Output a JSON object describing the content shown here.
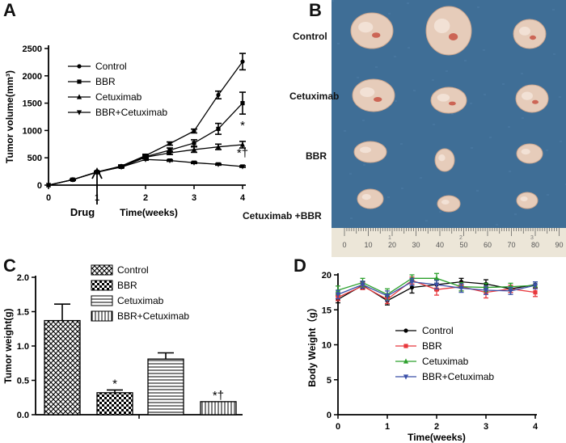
{
  "panels": {
    "a": {
      "letter": "A",
      "drug_label": "Drug",
      "chart_data": {
        "type": "line",
        "title": "",
        "xlabel": "Time(weeks)",
        "ylabel": "Tumor volume(mm³)",
        "xlim": [
          0,
          4
        ],
        "ylim": [
          0,
          2500
        ],
        "xticks": [
          "0",
          "1",
          "2",
          "3",
          "4"
        ],
        "yticks": [
          "0",
          "500",
          "1000",
          "1500",
          "2000",
          "2500"
        ],
        "x": [
          0,
          0.5,
          1,
          1.5,
          2,
          2.5,
          3,
          3.5,
          4
        ],
        "series": [
          {
            "name": "Control",
            "marker": "circle",
            "values": [
              0,
              100,
              240,
              350,
              540,
              760,
              990,
              1650,
              2260
            ],
            "errors": [
              0,
              10,
              15,
              20,
              25,
              30,
              35,
              70,
              150
            ]
          },
          {
            "name": "BBR",
            "marker": "square",
            "values": [
              0,
              100,
              240,
              340,
              520,
              640,
              770,
              1030,
              1500
            ],
            "errors": [
              0,
              10,
              15,
              20,
              25,
              40,
              60,
              100,
              200
            ]
          },
          {
            "name": "Cetuximab",
            "marker": "triangle-up",
            "values": [
              0,
              100,
              235,
              335,
              510,
              590,
              650,
              700,
              740
            ],
            "errors": [
              0,
              10,
              15,
              20,
              25,
              30,
              50,
              50,
              60
            ]
          },
          {
            "name": "BBR+Cetuximab",
            "marker": "triangle-down",
            "values": [
              0,
              100,
              240,
              330,
              470,
              450,
              410,
              380,
              340
            ],
            "errors": [
              0,
              8,
              10,
              15,
              15,
              15,
              15,
              15,
              15
            ]
          }
        ],
        "annotations": [
          {
            "text": "*",
            "x": 4,
            "y": 1020
          },
          {
            "text": "*†",
            "x": 4,
            "y": 520
          }
        ]
      }
    },
    "b": {
      "letter": "B",
      "row_labels": [
        "Control",
        "Cetuximab",
        "BBR",
        "Cetuximab +BBR"
      ],
      "ruler_numbers": [
        "0",
        "10",
        "20",
        "30",
        "40",
        "50",
        "60",
        "70",
        "80",
        "90"
      ],
      "ruler_small": [
        "1",
        "2",
        "3"
      ],
      "colors": {
        "cloth": "#3f6e96",
        "tumor": "#e6ccba",
        "ruler": "#ece6d8"
      }
    },
    "c": {
      "letter": "C",
      "chart_data": {
        "type": "bar",
        "title": "",
        "xlabel": "",
        "ylabel": "Tumor weight(g)",
        "ylim": [
          0,
          2.0
        ],
        "yticks": [
          "0.0",
          "0.5",
          "1.0",
          "1.5",
          "2.0"
        ],
        "categories": [
          "Control",
          "BBR",
          "Cetuximab",
          "BBR+Cetuximab"
        ],
        "values": [
          1.37,
          0.32,
          0.81,
          0.19
        ],
        "errors": [
          0.24,
          0.04,
          0.09,
          0.0
        ],
        "patterns": [
          "crosshatch",
          "checker",
          "horizontal",
          "vertical"
        ],
        "annotations": [
          {
            "text": "*",
            "category": "BBR"
          },
          {
            "text": "*†",
            "category": "BBR+Cetuximab"
          }
        ]
      }
    },
    "d": {
      "letter": "D",
      "chart_data": {
        "type": "line",
        "title": "",
        "xlabel": "Time(weeks)",
        "ylabel": "Body Weight（g）",
        "xlim": [
          0,
          4
        ],
        "ylim": [
          0,
          20
        ],
        "xticks": [
          "0",
          "1",
          "2",
          "3",
          "4"
        ],
        "yticks": [
          "0",
          "5",
          "10",
          "15",
          "20"
        ],
        "x": [
          0,
          0.5,
          1,
          1.5,
          2,
          2.5,
          3,
          3.5,
          4
        ],
        "series": [
          {
            "name": "Control",
            "color": "#000000",
            "marker": "circle",
            "values": [
              16.5,
              18.5,
              16.3,
              18.2,
              18.6,
              19.0,
              18.7,
              18.0,
              18.6
            ],
            "errors": [
              0.5,
              0.5,
              0.6,
              0.8,
              0.8,
              0.5,
              0.6,
              0.5,
              0.4
            ]
          },
          {
            "name": "BBR",
            "color": "#e8383d",
            "marker": "square",
            "values": [
              16.8,
              18.4,
              16.5,
              19.2,
              17.9,
              18.3,
              17.5,
              18.0,
              17.5
            ],
            "errors": [
              0.5,
              0.5,
              0.6,
              0.5,
              0.8,
              0.6,
              0.8,
              0.5,
              0.6
            ]
          },
          {
            "name": "Cetuximab",
            "color": "#2ca02c",
            "marker": "triangle-up",
            "values": [
              17.8,
              18.9,
              17.2,
              19.5,
              19.5,
              18.3,
              18.2,
              18.3,
              18.5
            ],
            "errors": [
              0.6,
              0.6,
              0.8,
              0.5,
              0.7,
              0.6,
              0.6,
              0.5,
              0.5
            ]
          },
          {
            "name": "BBR+Cetuximab",
            "color": "#3a4fa8",
            "marker": "triangle-down",
            "values": [
              17.2,
              18.6,
              17.0,
              19.0,
              18.6,
              18.1,
              17.8,
              17.7,
              18.5
            ],
            "errors": [
              0.6,
              0.5,
              0.7,
              0.5,
              0.6,
              0.6,
              0.6,
              0.5,
              0.5
            ]
          }
        ]
      }
    }
  }
}
